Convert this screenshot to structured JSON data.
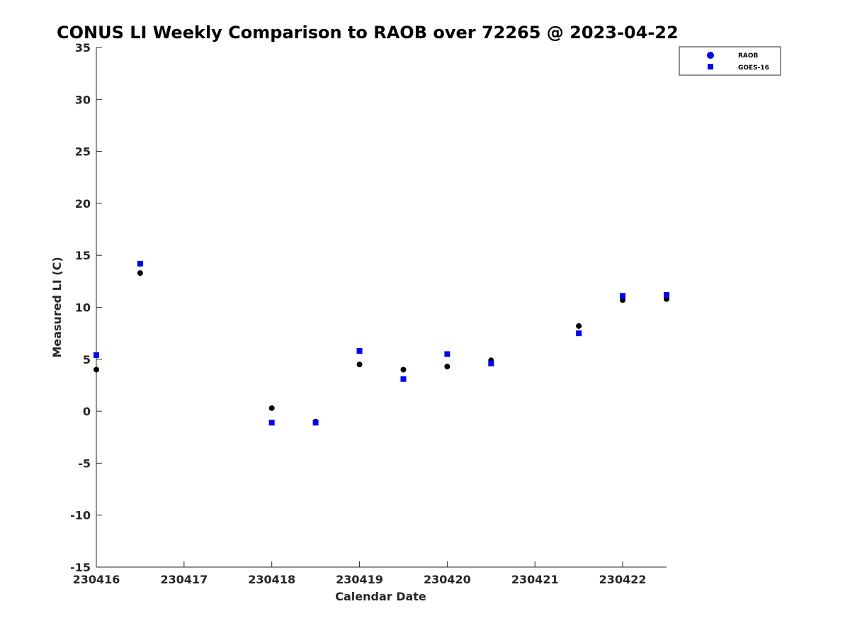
{
  "chart_data": {
    "type": "scatter",
    "title": "CONUS LI Weekly Comparison to RAOB over 72265 @ 2023-04-22",
    "xlabel": "Calendar Date",
    "ylabel": "Measured LI (C)",
    "xlim": [
      0,
      6.5
    ],
    "ylim": [
      -15,
      35
    ],
    "x_ticks": [
      0,
      1,
      2,
      3,
      4,
      5,
      6
    ],
    "x_tick_labels": [
      "230416",
      "230417",
      "230418",
      "230419",
      "230420",
      "230421",
      "230422"
    ],
    "y_ticks": [
      -15,
      -10,
      -5,
      0,
      5,
      10,
      15,
      20,
      25,
      30,
      35
    ],
    "y_tick_labels": [
      "-15",
      "-10",
      "-5",
      "0",
      "5",
      "10",
      "15",
      "20",
      "25",
      "30",
      "35"
    ],
    "grid": false,
    "legend_position": "top-right",
    "series": [
      {
        "name": "RAOB",
        "marker": "circle",
        "color": "#000000",
        "x": [
          0,
          0.5,
          2,
          2.5,
          3,
          3.5,
          4,
          4.5,
          5.5,
          6,
          6.5
        ],
        "values": [
          4.0,
          13.3,
          0.3,
          -1.0,
          4.5,
          4.0,
          4.3,
          4.9,
          8.2,
          10.7,
          10.8
        ]
      },
      {
        "name": "GOES-16",
        "marker": "square",
        "color": "#0000ff",
        "x": [
          0,
          0.5,
          2,
          2.5,
          3,
          3.5,
          4,
          4.5,
          5.5,
          6,
          6.5
        ],
        "values": [
          5.4,
          14.2,
          -1.1,
          -1.1,
          5.8,
          3.1,
          5.5,
          4.6,
          7.5,
          11.1,
          11.2
        ]
      }
    ]
  }
}
